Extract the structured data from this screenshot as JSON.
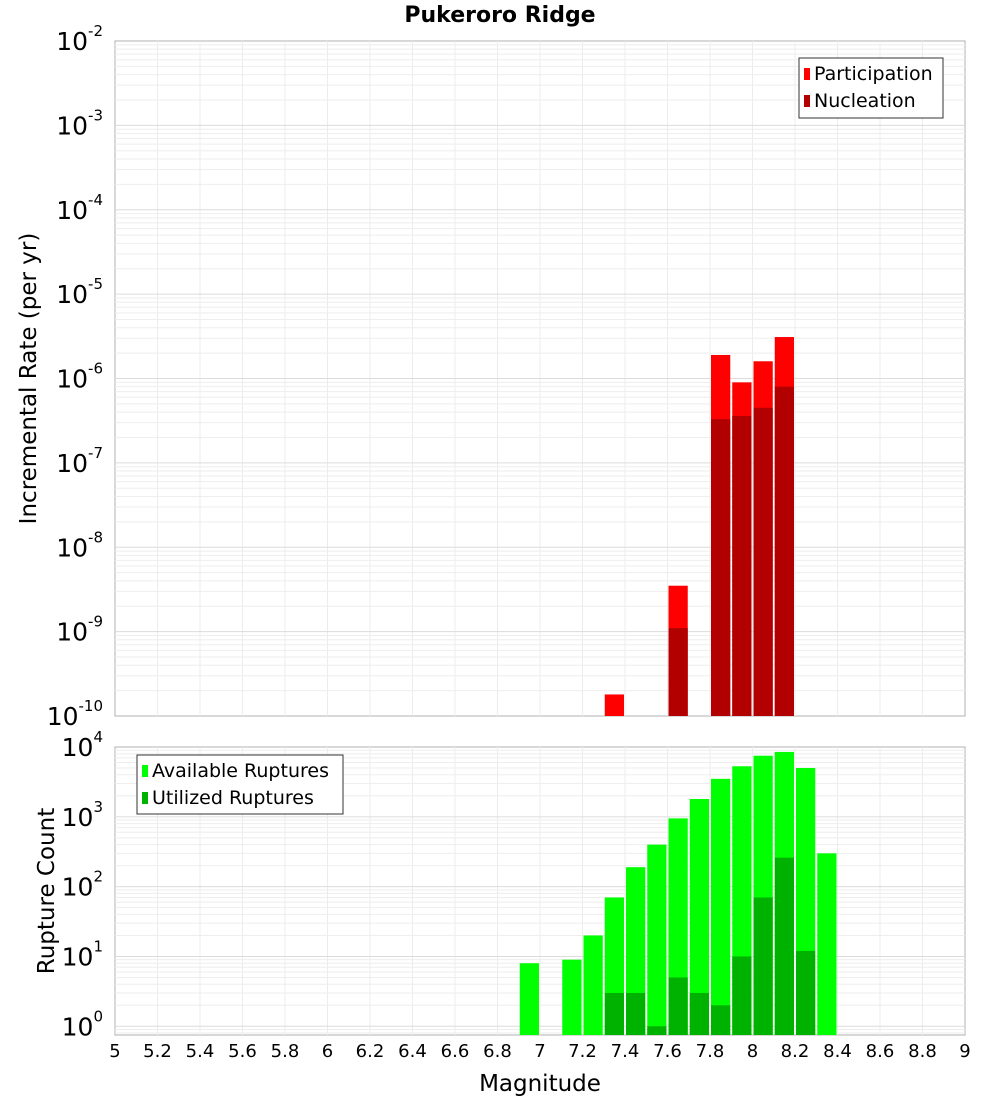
{
  "chart_data": [
    {
      "type": "bar",
      "title": "Pukeroro Ridge",
      "xlabel": "",
      "ylabel": "Incremental Rate (per yr)",
      "y_scale": "log",
      "xlim": [
        5,
        9
      ],
      "ylim": [
        1e-10,
        0.01
      ],
      "y_tick_exponents": [
        "-10",
        "-9",
        "-8",
        "-7",
        "-6",
        "-5",
        "-4",
        "-3",
        "-2"
      ],
      "bin_width": 0.1,
      "grid": true,
      "legend_position": "top-right",
      "series": [
        {
          "name": "Participation",
          "color": "#ff0000",
          "x": [
            7.35,
            7.65,
            7.85,
            7.95,
            8.05,
            8.15
          ],
          "values": [
            1.8e-10,
            3.5e-09,
            1.9e-06,
            9e-07,
            1.6e-06,
            3.1e-06
          ]
        },
        {
          "name": "Nucleation",
          "color": "#b20000",
          "x": [
            7.65,
            7.85,
            7.95,
            8.05,
            8.15
          ],
          "values": [
            1.1e-09,
            3.3e-07,
            3.6e-07,
            4.5e-07,
            8e-07
          ]
        }
      ]
    },
    {
      "type": "bar",
      "title": "",
      "xlabel": "Magnitude",
      "ylabel": "Rupture Count",
      "y_scale": "log",
      "xlim": [
        5,
        9
      ],
      "ylim": [
        0.75,
        10000
      ],
      "y_tick_exponents": [
        "0",
        "1",
        "2",
        "3",
        "4"
      ],
      "x_ticks": [
        "5",
        "5.2",
        "5.4",
        "5.6",
        "5.8",
        "6",
        "6.2",
        "6.4",
        "6.6",
        "6.8",
        "7",
        "7.2",
        "7.4",
        "7.6",
        "7.8",
        "8",
        "8.2",
        "8.4",
        "8.6",
        "8.8",
        "9"
      ],
      "bin_width": 0.1,
      "grid": true,
      "legend_position": "top-left",
      "series": [
        {
          "name": "Available Ruptures",
          "color": "#00ff00",
          "x": [
            6.95,
            7.15,
            7.25,
            7.35,
            7.45,
            7.55,
            7.65,
            7.75,
            7.85,
            7.95,
            8.05,
            8.15,
            8.25,
            8.35
          ],
          "values": [
            8,
            9,
            20,
            70,
            190,
            400,
            950,
            1800,
            3500,
            5300,
            7500,
            8500,
            5000,
            300
          ]
        },
        {
          "name": "Utilized Ruptures",
          "color": "#00b200",
          "x": [
            7.35,
            7.45,
            7.55,
            7.65,
            7.75,
            7.85,
            7.95,
            8.05,
            8.15,
            8.25
          ],
          "values": [
            3,
            3,
            1,
            5,
            3,
            2,
            10,
            70,
            260,
            12
          ]
        }
      ]
    }
  ]
}
